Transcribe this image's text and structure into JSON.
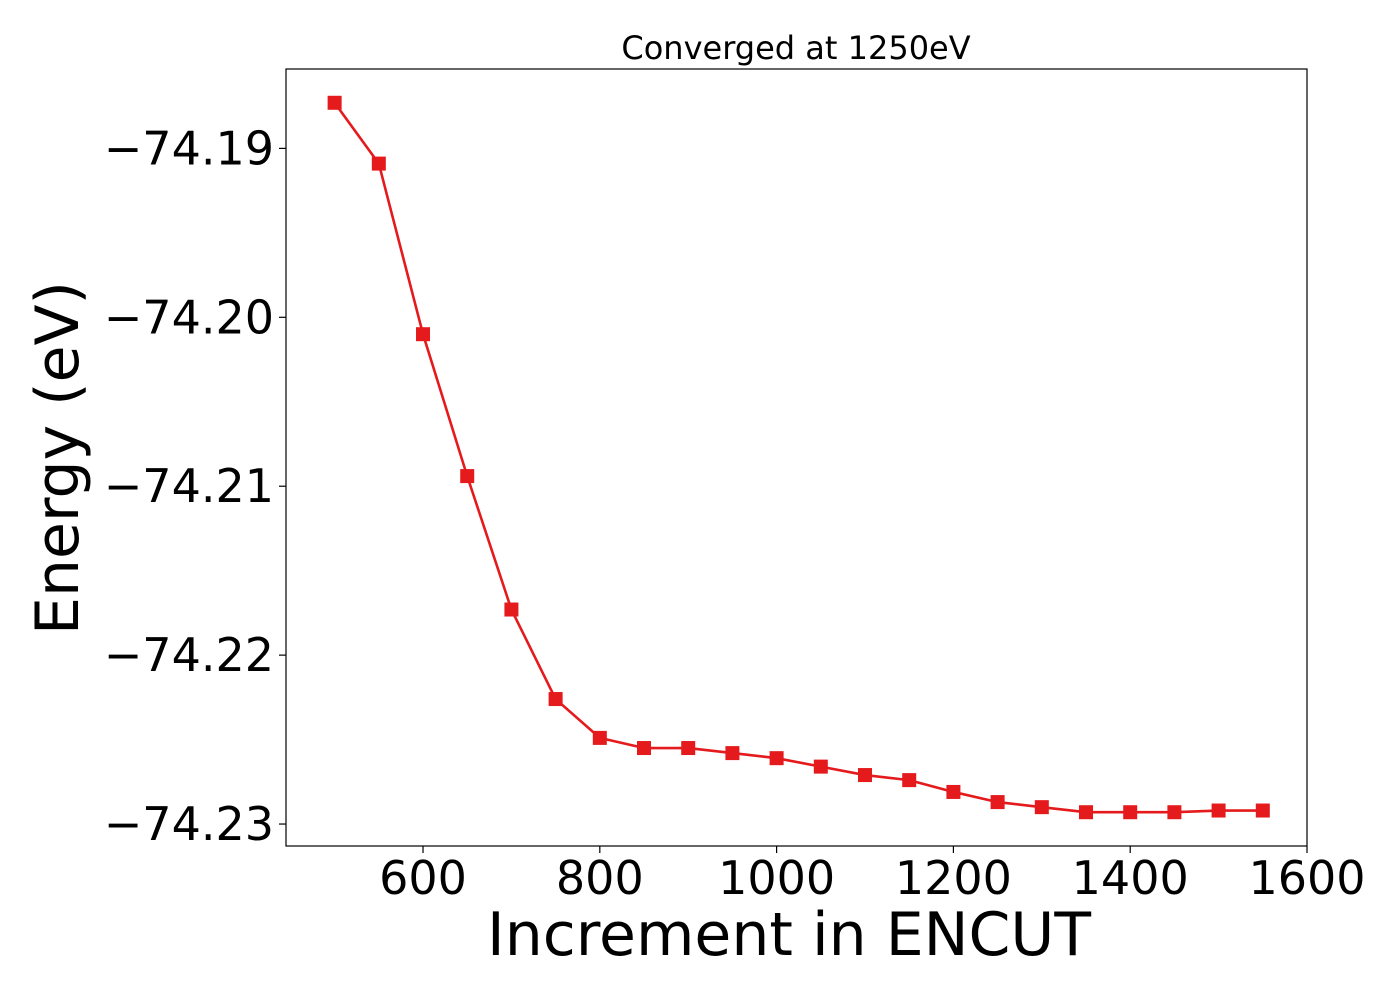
{
  "chart_data": {
    "type": "line",
    "title": "Converged at 1250eV",
    "xlabel": "Increment in ENCUT",
    "ylabel": "Energy (eV)",
    "xlim": [
      445,
      1600
    ],
    "ylim": [
      -74.2313,
      -74.1853
    ],
    "xticks": [
      600,
      800,
      1000,
      1200,
      1400,
      1600
    ],
    "xtick_labels": [
      "600",
      "800",
      "1000",
      "1200",
      "1400",
      "1600"
    ],
    "yticks": [
      -74.19,
      -74.2,
      -74.21,
      -74.22,
      -74.23
    ],
    "ytick_labels": [
      "−74.19",
      "−74.20",
      "−74.21",
      "−74.22",
      "−74.23"
    ],
    "grid": false,
    "legend": "none",
    "series": [
      {
        "color": "#e41a1c",
        "marker": "square",
        "x": [
          500,
          550,
          600,
          650,
          700,
          750,
          800,
          850,
          900,
          950,
          1000,
          1050,
          1100,
          1150,
          1200,
          1250,
          1300,
          1350,
          1400,
          1450,
          1500,
          1550
        ],
        "y": [
          -74.1873,
          -74.1909,
          -74.201,
          -74.2094,
          -74.2173,
          -74.2226,
          -74.2249,
          -74.2255,
          -74.2255,
          -74.2258,
          -74.2261,
          -74.2266,
          -74.2271,
          -74.2274,
          -74.2281,
          -74.2287,
          -74.229,
          -74.2293,
          -74.2293,
          -74.2293,
          -74.2292,
          -74.2292
        ]
      }
    ]
  }
}
